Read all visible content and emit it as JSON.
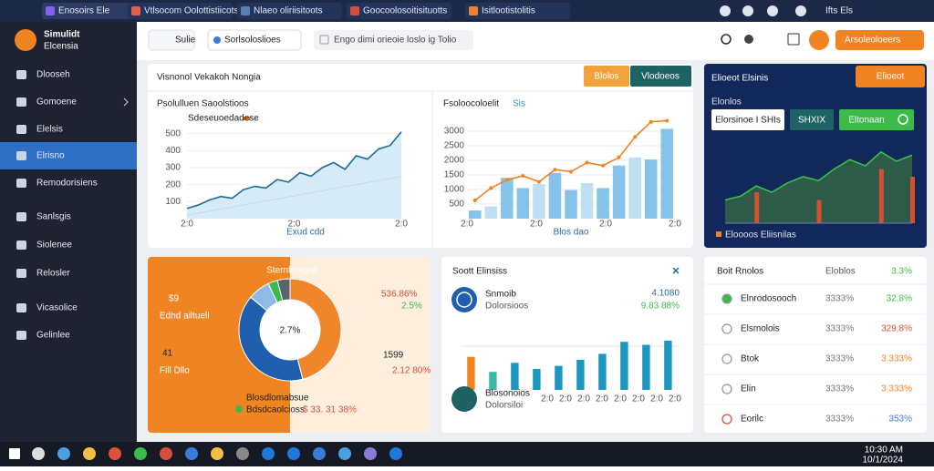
{
  "browser": {
    "tabs": [
      "Enosoirs Ele",
      "Vtlsocom Oolottistiicots",
      "Nlaeo oliriisitoots",
      "Goocoolosoitisituotts",
      "Isitlootistolitis"
    ],
    "status": "Ifts Els"
  },
  "sidebar": {
    "brand": [
      "Simulidt",
      "Elcensia"
    ],
    "items": [
      "Dlooseh",
      "Gomoene",
      "Elelsis",
      "Elrisno",
      "Remodorisiens",
      "Sanlsgis",
      "Siolenee",
      "Relosler",
      "Vicasolice",
      "Gelinlee"
    ],
    "active": 3
  },
  "header": {
    "selector": "Sulie",
    "dropdown": "Sorlsoloslioes",
    "search": "Engo dimi orieoie loslo ig Tolio",
    "button": "Arsoleoloeers"
  },
  "trend": {
    "title": "Visnonol Vekakoh Nongia",
    "tabs": [
      "Blolos",
      "Vlodoeos"
    ],
    "left": {
      "title": "Psolulluen Saoolstioos",
      "legend": "Sdeseuoedadese",
      "xlabel": "Exud cdd",
      "xticks": [
        "2:0",
        "2:0",
        "2:0"
      ],
      "ylim": [
        0,
        600
      ],
      "yticks": [
        100,
        200,
        300,
        400,
        500
      ],
      "values": [
        60,
        80,
        110,
        130,
        120,
        170,
        190,
        180,
        230,
        215,
        270,
        250,
        300,
        330,
        290,
        370,
        350,
        410,
        430,
        510
      ],
      "baseline": [
        20,
        32,
        44,
        56,
        68,
        80,
        92,
        104,
        116,
        128,
        140,
        152,
        164,
        176,
        188,
        200,
        212,
        224,
        236,
        248
      ]
    },
    "right": {
      "title": "Fsoloocoloelit",
      "legend": "Sis",
      "xlabel": "Blos dao",
      "xticks": [
        "2:0",
        "2:0",
        "2:0",
        "2:0"
      ],
      "ylim": [
        0,
        3500
      ],
      "yticks": [
        500,
        1000,
        1500,
        2000,
        2500,
        3000
      ],
      "bars": [
        280,
        420,
        1400,
        1050,
        1190,
        1570,
        980,
        1220,
        1050,
        1820,
        2100,
        2030,
        3080
      ],
      "line": [
        630,
        1050,
        1330,
        1470,
        1260,
        1680,
        1610,
        1920,
        1820,
        2100,
        2800,
        3320,
        3360
      ]
    }
  },
  "nav": {
    "title": "Elioeot Elsinis",
    "button": "Elioeot",
    "label": "Elonlos",
    "boxes": [
      "Elorsinoe I SHIs",
      "SHXIX",
      "Eltonaan"
    ],
    "legend": "Eloooos Eliisnilas",
    "ylim": [
      0,
      100
    ],
    "values": [
      30,
      35,
      48,
      40,
      52,
      60,
      55,
      70,
      82,
      74,
      92,
      80,
      88
    ],
    "spikes": [
      0,
      0,
      40,
      0,
      0,
      0,
      30,
      0,
      0,
      0,
      70,
      0,
      60
    ]
  },
  "summary": {
    "title": "Sternlomgiel",
    "big": [
      "$9",
      "41",
      "1599"
    ],
    "small": [
      "Edhd ailtuell",
      "Fill Dllo",
      "536.86%",
      "2.5%",
      "2.12 80%"
    ],
    "center": "2.7%",
    "legend": [
      "Blosdlomabsue",
      "Bdsdcaolcioss",
      "$ 33. 31 38%"
    ],
    "segments": [
      46,
      40,
      7,
      3,
      4
    ]
  },
  "social": {
    "title": "Soott Elinsiss",
    "rows": [
      {
        "name": "Snmoib",
        "sub": "Dolorsioos",
        "value": "4.1080",
        "change": "9.83 88%"
      },
      {
        "name": "Blosonoios",
        "sub": "Dolorsiloi"
      }
    ],
    "xticks": [
      "2:0",
      "2:0",
      "2:0",
      "2:0",
      "2:0",
      "2:0",
      "2:0",
      "2:0"
    ],
    "ylim": [
      0,
      100
    ],
    "values": [
      55,
      30,
      45,
      35,
      40,
      50,
      60,
      80,
      75,
      82
    ]
  },
  "ranks": {
    "title": "Boit Rnolos",
    "head": [
      "Eloblos",
      "3.3%"
    ],
    "rows": [
      [
        "Elnrodosooch",
        "3333%",
        "32.8%"
      ],
      [
        "Elsmolois",
        "3333%",
        "329.8%"
      ],
      [
        "Btok",
        "3333%",
        "3.333%"
      ],
      [
        "Elin",
        "3333%",
        "3.333%"
      ],
      [
        "Eorilc",
        "3333%",
        "353%"
      ]
    ]
  },
  "taskbar": {
    "time": "10:30 AM",
    "date": "10/1/2024"
  }
}
